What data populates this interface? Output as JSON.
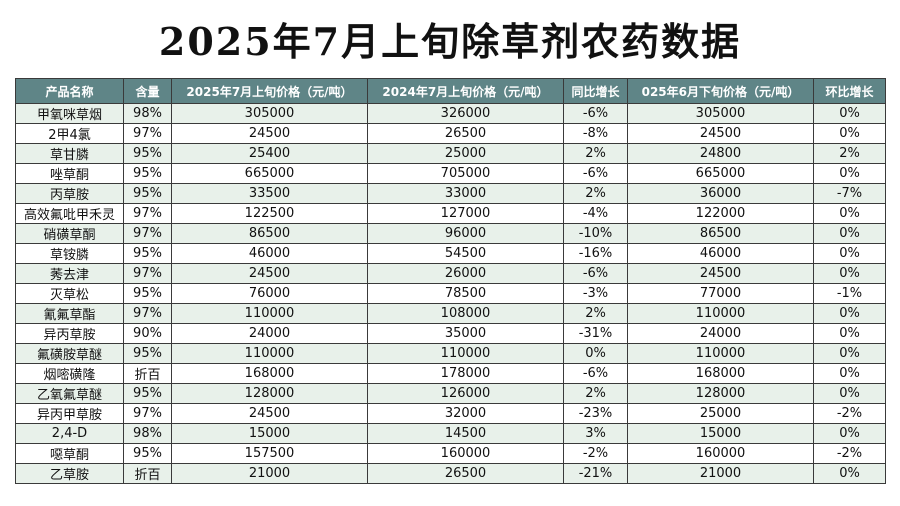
{
  "title": "2025年7月上旬除草剂农药数据",
  "table": {
    "headers": [
      "产品名称",
      "含量",
      "2025年7月上旬价格（元/吨）",
      "2024年7月上旬价格（元/吨）",
      "同比增长",
      "025年6月下旬价格（元/吨）",
      "环比增长"
    ],
    "rows": [
      [
        "甲氧咪草烟",
        "98%",
        "305000",
        "326000",
        "-6%",
        "305000",
        "0%"
      ],
      [
        "2甲4氯",
        "97%",
        "24500",
        "26500",
        "-8%",
        "24500",
        "0%"
      ],
      [
        "草甘膦",
        "95%",
        "25400",
        "25000",
        "2%",
        "24800",
        "2%"
      ],
      [
        "唑草酮",
        "95%",
        "665000",
        "705000",
        "-6%",
        "665000",
        "0%"
      ],
      [
        "丙草胺",
        "95%",
        "33500",
        "33000",
        "2%",
        "36000",
        "-7%"
      ],
      [
        "高效氟吡甲禾灵",
        "97%",
        "122500",
        "127000",
        "-4%",
        "122000",
        "0%"
      ],
      [
        "硝磺草酮",
        "97%",
        "86500",
        "96000",
        "-10%",
        "86500",
        "0%"
      ],
      [
        "草铵膦",
        "95%",
        "46000",
        "54500",
        "-16%",
        "46000",
        "0%"
      ],
      [
        "莠去津",
        "97%",
        "24500",
        "26000",
        "-6%",
        "24500",
        "0%"
      ],
      [
        "灭草松",
        "95%",
        "76000",
        "78500",
        "-3%",
        "77000",
        "-1%"
      ],
      [
        "氰氟草酯",
        "97%",
        "110000",
        "108000",
        "2%",
        "110000",
        "0%"
      ],
      [
        "异丙草胺",
        "90%",
        "24000",
        "35000",
        "-31%",
        "24000",
        "0%"
      ],
      [
        "氟磺胺草醚",
        "95%",
        "110000",
        "110000",
        "0%",
        "110000",
        "0%"
      ],
      [
        "烟嘧磺隆",
        "折百",
        "168000",
        "178000",
        "-6%",
        "168000",
        "0%"
      ],
      [
        "乙氧氟草醚",
        "95%",
        "128000",
        "126000",
        "2%",
        "128000",
        "0%"
      ],
      [
        "异丙甲草胺",
        "97%",
        "24500",
        "32000",
        "-23%",
        "25000",
        "-2%"
      ],
      [
        "2,4-D",
        "98%",
        "15000",
        "14500",
        "3%",
        "15000",
        "0%"
      ],
      [
        "噁草酮",
        "95%",
        "157500",
        "160000",
        "-2%",
        "160000",
        "-2%"
      ],
      [
        "乙草胺",
        "折百",
        "21000",
        "26500",
        "-21%",
        "21000",
        "0%"
      ]
    ]
  }
}
